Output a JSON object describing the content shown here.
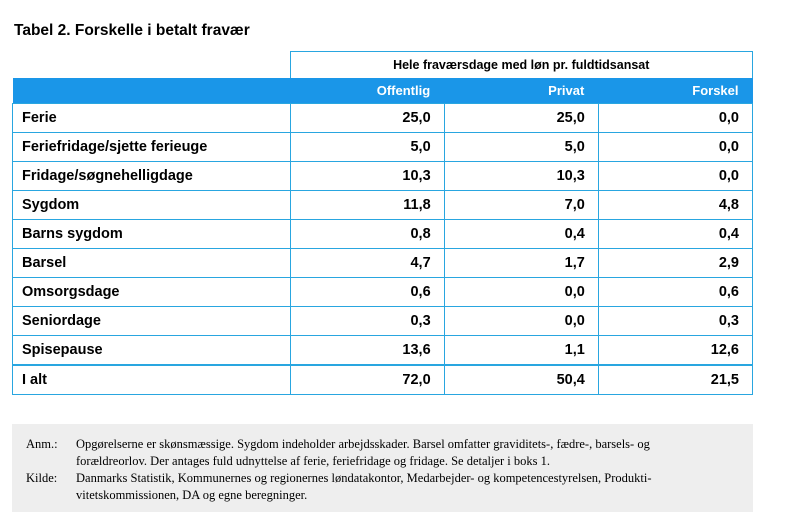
{
  "title": "Tabel 2. Forskelle i betalt fravær",
  "table": {
    "super_header": "Hele fraværsdage med løn pr. fuldtidsansat",
    "columns": [
      "",
      "Offentlig",
      "Privat",
      "Forskel"
    ],
    "rows": [
      {
        "label": "Ferie",
        "offentlig": "25,0",
        "privat": "25,0",
        "forskel": "0,0"
      },
      {
        "label": "Feriefridage/sjette ferieuge",
        "offentlig": "5,0",
        "privat": "5,0",
        "forskel": "0,0"
      },
      {
        "label": "Fridage/søgnehelligdage",
        "offentlig": "10,3",
        "privat": "10,3",
        "forskel": "0,0"
      },
      {
        "label": "Sygdom",
        "offentlig": "11,8",
        "privat": "7,0",
        "forskel": "4,8"
      },
      {
        "label": "Barns sygdom",
        "offentlig": "0,8",
        "privat": "0,4",
        "forskel": "0,4"
      },
      {
        "label": "Barsel",
        "offentlig": "4,7",
        "privat": "1,7",
        "forskel": "2,9"
      },
      {
        "label": "Omsorgsdage",
        "offentlig": "0,6",
        "privat": "0,0",
        "forskel": "0,6"
      },
      {
        "label": "Seniordage",
        "offentlig": "0,3",
        "privat": "0,0",
        "forskel": "0,3"
      },
      {
        "label": "Spisepause",
        "offentlig": "13,6",
        "privat": "1,1",
        "forskel": "12,6"
      }
    ],
    "total": {
      "label": "I alt",
      "offentlig": "72,0",
      "privat": "50,4",
      "forskel": "21,5"
    }
  },
  "notes": {
    "anm_label": "Anm.:",
    "anm_line1": "Opgørelserne er skønsmæssige. Sygdom indeholder arbejdsskader. Barsel omfatter graviditets-, fædre-, barsels- og",
    "anm_line2": "forældreorlov. Der antages fuld udnyttelse af ferie, feriefridage og fridage. Se detaljer i boks 1.",
    "kilde_label": "Kilde:",
    "kilde_line1": "Danmarks Statistik, Kommunernes og regionernes løndatakontor, Medarbejder- og kompetencestyrelsen, Produkti-",
    "kilde_line2": "vitetskommissionen, DA og egne beregninger."
  },
  "colors": {
    "accent": "#1a96e8",
    "border": "#29a6e0",
    "notes_bg": "#eeeeee"
  }
}
